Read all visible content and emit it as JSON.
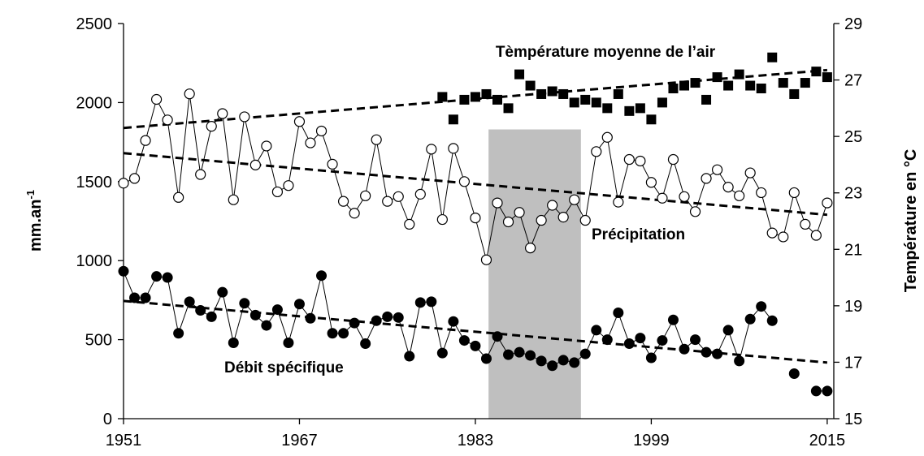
{
  "chart_data": {
    "type": "line",
    "ylabel": "mm.an",
    "ylabel_sup": "-1",
    "y2label": "Température en °C",
    "x": [
      1951,
      1952,
      1953,
      1954,
      1955,
      1956,
      1957,
      1958,
      1959,
      1960,
      1961,
      1962,
      1963,
      1964,
      1965,
      1966,
      1967,
      1968,
      1969,
      1970,
      1971,
      1972,
      1973,
      1974,
      1975,
      1976,
      1977,
      1978,
      1979,
      1980,
      1981,
      1982,
      1983,
      1984,
      1985,
      1986,
      1987,
      1988,
      1989,
      1990,
      1991,
      1992,
      1993,
      1994,
      1995,
      1996,
      1997,
      1998,
      1999,
      2000,
      2001,
      2002,
      2003,
      2004,
      2005,
      2006,
      2007,
      2008,
      2009,
      2010,
      2011,
      2012,
      2013,
      2014,
      2015
    ],
    "xlim": [
      1951,
      2015.6
    ],
    "xticks": [
      1951,
      1967,
      1983,
      1999,
      2015
    ],
    "ylim": [
      0,
      2500
    ],
    "yticks": [
      0,
      500,
      1000,
      1500,
      2000,
      2500
    ],
    "y2lim": [
      15,
      29
    ],
    "y2ticks": [
      15,
      17,
      19,
      21,
      23,
      25,
      27,
      29
    ],
    "series": [
      {
        "name": "Précipitation",
        "color": "#000000",
        "marker": "circle-open",
        "connect": true,
        "values": [
          1490,
          1520,
          1760,
          2020,
          1890,
          1400,
          2055,
          1545,
          1850,
          1930,
          1385,
          1910,
          1605,
          1725,
          1435,
          1475,
          1880,
          1745,
          1820,
          1610,
          1375,
          1300,
          1410,
          1765,
          1375,
          1405,
          1230,
          1420,
          1705,
          1260,
          1710,
          1500,
          1270,
          1005,
          1365,
          1245,
          1305,
          1080,
          1255,
          1350,
          1275,
          1385,
          1255,
          1690,
          1780,
          1370,
          1640,
          1630,
          1495,
          1395,
          1640,
          1405,
          1310,
          1520,
          1575,
          1465,
          1410,
          1555,
          1430,
          1175,
          1150,
          1430,
          1230,
          1160,
          1365
        ]
      },
      {
        "name": "Débit spécifique",
        "color": "#000000",
        "marker": "circle",
        "connect": true,
        "values": [
          933,
          765,
          765,
          900,
          893,
          540,
          740,
          685,
          645,
          800,
          480,
          730,
          655,
          590,
          690,
          480,
          725,
          635,
          905,
          540,
          540,
          605,
          475,
          620,
          645,
          640,
          395,
          735,
          740,
          415,
          615,
          495,
          460,
          380,
          520,
          405,
          420,
          400,
          365,
          335,
          370,
          355,
          410,
          560,
          500,
          670,
          475,
          510,
          385,
          495,
          625,
          440,
          500,
          420,
          410,
          560,
          365,
          630,
          710,
          620,
          null,
          285,
          null,
          175,
          175
        ]
      },
      {
        "name": "Tèmpérature moyenne de l’air",
        "color": "#000000",
        "marker": "square",
        "connect": false,
        "axis": "y2",
        "values": [
          null,
          null,
          null,
          null,
          null,
          null,
          null,
          null,
          null,
          null,
          null,
          null,
          null,
          null,
          null,
          null,
          null,
          null,
          null,
          null,
          null,
          null,
          null,
          null,
          null,
          null,
          null,
          null,
          null,
          26.4,
          25.6,
          26.3,
          26.4,
          26.5,
          26.3,
          26.0,
          27.2,
          26.8,
          26.5,
          26.6,
          26.5,
          26.2,
          26.3,
          26.2,
          26.0,
          26.5,
          25.9,
          26.0,
          25.6,
          26.2,
          26.7,
          26.8,
          26.9,
          26.3,
          27.1,
          26.8,
          27.2,
          26.8,
          26.7,
          27.8,
          26.9,
          26.5,
          26.9,
          27.3,
          27.1
        ]
      }
    ],
    "trendlines": [
      {
        "x": [
          1951,
          2015
        ],
        "values": [
          1680,
          1290
        ]
      },
      {
        "x": [
          1951,
          2015
        ],
        "values": [
          745,
          355
        ]
      },
      {
        "x": [
          1951,
          2015
        ],
        "values": [
          25.3,
          27.35
        ],
        "axis": "y2"
      }
    ],
    "shaded_region": {
      "x": [
        1984.2,
        1992.6
      ],
      "y": [
        0,
        1830
      ],
      "color": "#bfbfbf"
    }
  }
}
